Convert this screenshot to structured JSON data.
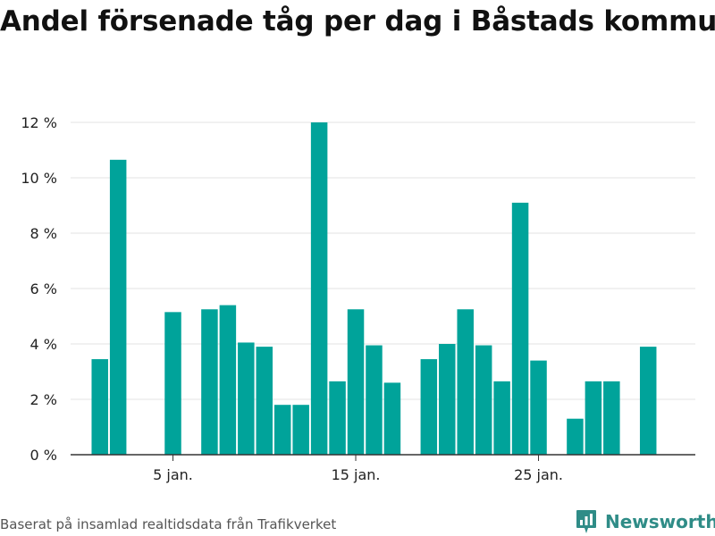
{
  "title": "Andel försenade tåg per dag i Båstads kommun",
  "footer": {
    "source": "Baserat på insamlad realtidsdata från Trafikverket",
    "brand": "Newsworthy",
    "brand_icon": "newsworthy-logo-icon"
  },
  "colors": {
    "bar": "#00a39a",
    "grid": "#e3e3e3",
    "axis": "#333333"
  },
  "chart_data": {
    "type": "bar",
    "title": "Andel försenade tåg per dag i Båstads kommun",
    "xlabel": "",
    "ylabel": "",
    "x": [
      1,
      2,
      3,
      4,
      5,
      6,
      7,
      8,
      9,
      10,
      11,
      12,
      13,
      14,
      15,
      16,
      17,
      18,
      19,
      20,
      21,
      22,
      23,
      24,
      25,
      26,
      27,
      28,
      29,
      30,
      31
    ],
    "values": [
      3.45,
      10.65,
      null,
      null,
      5.15,
      null,
      5.25,
      5.4,
      4.05,
      3.9,
      1.8,
      1.8,
      12.0,
      2.65,
      5.25,
      3.95,
      2.6,
      null,
      3.45,
      4.0,
      5.25,
      3.95,
      2.65,
      9.1,
      3.4,
      null,
      1.3,
      2.65,
      2.65,
      null,
      3.9
    ],
    "ylim": [
      0,
      12
    ],
    "y_ticks": [
      0,
      2,
      4,
      6,
      8,
      10,
      12
    ],
    "y_tick_labels": [
      "0 %",
      "2 %",
      "4 %",
      "6 %",
      "8 %",
      "10 %",
      "12 %"
    ],
    "x_ticks": [
      5,
      15,
      25
    ],
    "x_tick_labels": [
      "5 jan.",
      "15 jan.",
      "25 jan."
    ],
    "grid": true,
    "legend": "none"
  }
}
